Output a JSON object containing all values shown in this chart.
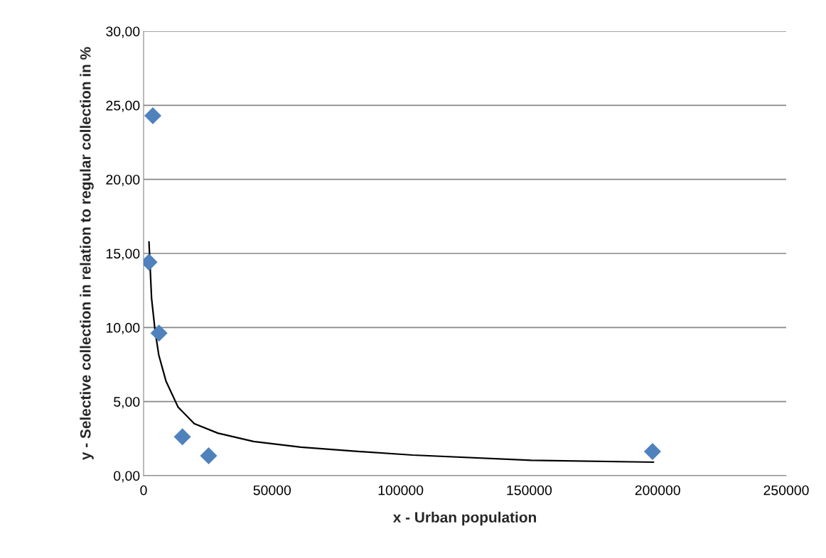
{
  "chart_data": {
    "type": "scatter",
    "xlabel": "x - Urban population",
    "ylabel": "y - Selective collection in relation to regular collection in %",
    "series": [
      {
        "color": "#4f81bd",
        "marker": "diamond",
        "x": [
          3600,
          2100,
          6000,
          15100,
          25300,
          198000
        ],
        "values": [
          24.3,
          14.41,
          9.62,
          2.62,
          1.34,
          1.63
        ]
      },
      {
        "type": "line",
        "color": "#000000",
        "marker": "none",
        "line_style": "solid",
        "x": [
          2100,
          3100,
          4500,
          5900,
          8700,
          13400,
          19700,
          28900,
          42800,
          61200,
          79700,
          104700,
          150800,
          198400
        ],
        "values": [
          15.78,
          11.98,
          9.74,
          8.15,
          6.39,
          4.63,
          3.51,
          2.87,
          2.31,
          1.92,
          1.68,
          1.39,
          1.04,
          0.91
        ]
      }
    ],
    "xlim": [
      0,
      250000
    ],
    "xticks": [
      0,
      50000,
      100000,
      150000,
      200000,
      250000
    ],
    "ylim": [
      0,
      30
    ],
    "yticks": [
      {
        "value": 0,
        "label": "0,00"
      },
      {
        "value": 5,
        "label": "5,00"
      },
      {
        "value": 10,
        "label": "10,00"
      },
      {
        "value": 15,
        "label": "15,00"
      },
      {
        "value": 20,
        "label": "20,00"
      },
      {
        "value": 25,
        "label": "25,00"
      },
      {
        "value": 30,
        "label": "30,00"
      }
    ],
    "grid": "y",
    "legend": false
  }
}
